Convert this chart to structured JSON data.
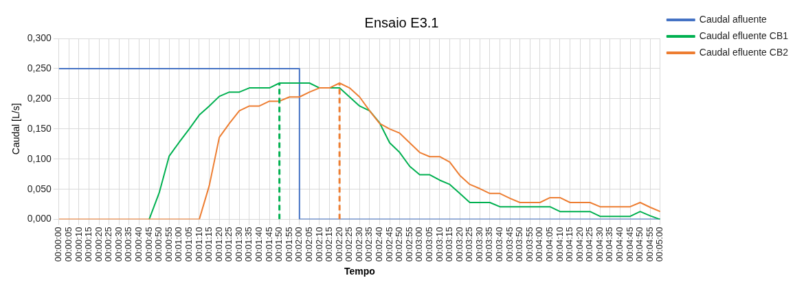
{
  "chart_data": {
    "type": "line",
    "title": "Ensaio E3.1",
    "xlabel": "Tempo",
    "ylabel": "Caudal [L/s]",
    "categories": [
      "00:00:00",
      "00:00:05",
      "00:00:10",
      "00:00:15",
      "00:00:20",
      "00:00:25",
      "00:00:30",
      "00:00:35",
      "00:00:40",
      "00:00:45",
      "00:00:50",
      "00:00:55",
      "00:01:00",
      "00:01:05",
      "00:01:10",
      "00:01:15",
      "00:01:20",
      "00:01:25",
      "00:01:30",
      "00:01:35",
      "00:01:40",
      "00:01:45",
      "00:01:50",
      "00:01:55",
      "00:02:00",
      "00:02:05",
      "00:02:10",
      "00:02:15",
      "00:02:20",
      "00:02:25",
      "00:02:30",
      "00:02:35",
      "00:02:40",
      "00:02:45",
      "00:02:50",
      "00:02:55",
      "00:03:00",
      "00:03:05",
      "00:03:10",
      "00:03:15",
      "00:03:20",
      "00:03:25",
      "00:03:30",
      "00:03:35",
      "00:03:40",
      "00:03:45",
      "00:03:50",
      "00:03:55",
      "00:04:00",
      "00:04:05",
      "00:04:10",
      "00:04:15",
      "00:04:20",
      "00:04:25",
      "00:04:30",
      "00:04:35",
      "00:04:40",
      "00:04:45",
      "00:04:50",
      "00:04:55",
      "00:05:00"
    ],
    "series": [
      {
        "name": "Caudal afluente",
        "type": "step",
        "color": "#4472c4",
        "values": [
          0.25,
          0.25,
          0.25,
          0.25,
          0.25,
          0.25,
          0.25,
          0.25,
          0.25,
          0.25,
          0.25,
          0.25,
          0.25,
          0.25,
          0.25,
          0.25,
          0.25,
          0.25,
          0.25,
          0.25,
          0.25,
          0.25,
          0.25,
          0.25,
          0,
          0,
          0,
          0,
          0,
          0,
          0,
          0,
          0,
          0,
          0,
          0,
          0,
          0,
          0,
          0,
          0,
          0,
          0,
          0,
          0,
          0,
          0,
          0,
          0,
          0,
          0,
          0,
          0,
          0,
          0,
          0,
          0,
          0,
          0,
          0,
          0
        ]
      },
      {
        "name": "Caudal efluente CB1",
        "color": "#00b050",
        "values": [
          null,
          null,
          null,
          null,
          null,
          null,
          null,
          null,
          null,
          0,
          0.044,
          0.105,
          0.128,
          0.15,
          0.173,
          0.188,
          0.204,
          0.211,
          0.211,
          0.218,
          0.218,
          0.218,
          0.226,
          0.226,
          0.226,
          0.226,
          0.218,
          0.218,
          0.218,
          0.203,
          0.188,
          0.18,
          0.16,
          0.127,
          0.111,
          0.088,
          0.074,
          0.074,
          0.065,
          0.058,
          0.043,
          0.028,
          0.028,
          0.028,
          0.021,
          0.021,
          0.021,
          0.021,
          0.021,
          0.021,
          0.013,
          0.013,
          0.013,
          0.013,
          0.005,
          0.005,
          0.005,
          0.005,
          0.013,
          0.006,
          0
        ]
      },
      {
        "name": "Caudal efluente CB2",
        "color": "#ed7d31",
        "values": [
          0,
          0,
          0,
          0,
          0,
          0,
          0,
          0,
          0,
          0,
          0,
          0,
          0,
          0,
          0,
          0.056,
          0.136,
          0.159,
          0.18,
          0.188,
          0.188,
          0.196,
          0.196,
          0.203,
          0.203,
          0.211,
          0.218,
          0.218,
          0.226,
          0.218,
          0.203,
          0.18,
          0.159,
          0.15,
          0.143,
          0.127,
          0.111,
          0.104,
          0.104,
          0.095,
          0.073,
          0.058,
          0.051,
          0.043,
          0.043,
          0.035,
          0.028,
          0.028,
          0.028,
          0.036,
          0.036,
          0.028,
          0.028,
          0.028,
          0.021,
          0.021,
          0.021,
          0.021,
          0.028,
          0.02,
          0.013
        ]
      },
      {
        "color": "#00b050",
        "line_style": "dashed",
        "x": [
          "00:01:50",
          "00:01:50"
        ],
        "values": [
          0,
          0.226
        ]
      },
      {
        "color": "#ed7d31",
        "line_style": "dashed",
        "x": [
          "00:02:20",
          "00:02:20"
        ],
        "values": [
          0,
          0.226
        ]
      }
    ],
    "ylim": [
      0,
      0.3
    ],
    "yticks": [
      {
        "value": 0,
        "label": "0,000"
      },
      {
        "value": 0.05,
        "label": "0,050"
      },
      {
        "value": 0.1,
        "label": "0,100"
      },
      {
        "value": 0.15,
        "label": "0,150"
      },
      {
        "value": 0.2,
        "label": "0,200"
      },
      {
        "value": 0.25,
        "label": "0,250"
      },
      {
        "value": 0.3,
        "label": "0,300"
      }
    ],
    "grid": true,
    "legend": "right",
    "marker": "none",
    "line_style": "solid"
  }
}
